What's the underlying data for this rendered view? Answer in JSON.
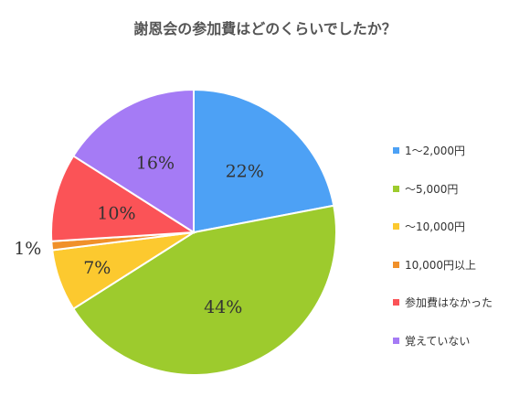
{
  "chart_data": {
    "type": "pie",
    "title": "謝恩会の参加費はどのくらいでしたか？",
    "labels": [
      "1〜2,000円",
      "〜5,000円",
      "〜10,000円",
      "10,000円以上",
      "参加費はなかった",
      "覚えていない"
    ],
    "values": [
      22,
      44,
      7,
      1,
      10,
      16
    ],
    "data_labels": [
      "22%",
      "44%",
      "7%",
      "1%",
      "10%",
      "16%"
    ],
    "colors": [
      "#4da1f5",
      "#9dcb2d",
      "#fcc92f",
      "#f0902a",
      "#fb5357",
      "#a57bf5"
    ],
    "legend_position": "right"
  }
}
